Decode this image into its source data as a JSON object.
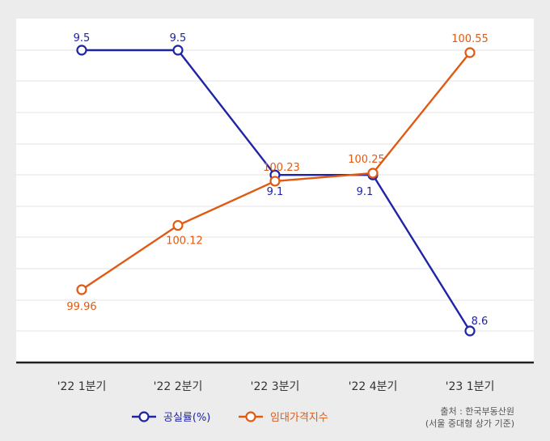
{
  "chart_data": {
    "type": "line",
    "categories": [
      "'22 1분기",
      "'22 2분기",
      "'22 3분기",
      "'22 4분기",
      "'23 1분기"
    ],
    "series": [
      {
        "name": "공실률(%)",
        "values": [
          9.5,
          9.5,
          9.1,
          9.1,
          8.6
        ],
        "labels": [
          "9.5",
          "9.5",
          "9.1",
          "9.1",
          "8.6"
        ],
        "color": "#1e24a6"
      },
      {
        "name": "임대가격지수",
        "values": [
          99.96,
          100.12,
          100.23,
          100.25,
          100.55
        ],
        "labels": [
          "99.96",
          "100.12",
          "100.23",
          "100.25",
          "100.55"
        ],
        "color": "#e05a12"
      }
    ],
    "grid": true,
    "legend_position": "bottom-center",
    "source_line1": "출처 : 한국부동산원",
    "source_line2": "(서울 중대형 상가 기준)"
  },
  "colors": {
    "background": "#ececec",
    "plot_bg": "#ffffff",
    "grid": "#e3e3e3",
    "axis": "#222222",
    "text": "#333333",
    "source": "#555555"
  }
}
